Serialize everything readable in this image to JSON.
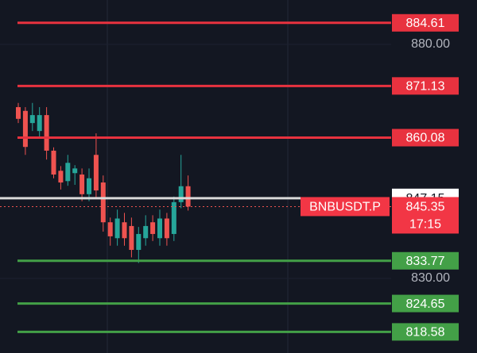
{
  "chart_data": {
    "type": "candlestick",
    "categories": [
      null,
      null,
      null,
      null,
      null,
      null,
      null,
      null,
      null,
      null,
      null,
      null,
      null,
      null,
      null,
      null,
      null,
      null,
      null,
      null,
      null,
      null,
      null,
      null,
      null
    ],
    "open": [
      866.6,
      865.8,
      863.2,
      861.5,
      864.9,
      857.3,
      853.0,
      850.8,
      852.5,
      852.2,
      848.0,
      856.4,
      850.5,
      842.0,
      838.6,
      842.0,
      841.2,
      836.1,
      838.6,
      842.0,
      838.6,
      842.8,
      839.5,
      846.3,
      849.7
    ],
    "high": [
      867.5,
      866.6,
      867.5,
      866.6,
      866.6,
      858.0,
      854.0,
      856.4,
      854.2,
      853.5,
      853.5,
      861.0,
      852.0,
      843.0,
      844.7,
      844.0,
      843.0,
      841.0,
      843.5,
      843.5,
      844.7,
      844.0,
      847.5,
      856.4,
      852.0
    ],
    "low": [
      863.2,
      856.4,
      861.5,
      860.0,
      855.4,
      851.4,
      849.0,
      849.8,
      850.0,
      846.5,
      846.5,
      847.0,
      840.0,
      837.0,
      837.0,
      837.0,
      834.5,
      833.3,
      837.0,
      838.0,
      837.0,
      837.0,
      838.0,
      845.0,
      844.5
    ],
    "close": [
      864.1,
      858.1,
      864.9,
      864.9,
      857.3,
      852.2,
      850.5,
      854.7,
      853.5,
      848.0,
      851.4,
      848.8,
      842.0,
      839.0,
      842.8,
      838.6,
      836.1,
      839.5,
      841.2,
      839.5,
      842.8,
      838.6,
      846.3,
      849.7,
      845.35
    ],
    "up_color": "#26a69a",
    "down_color": "#ef5350",
    "ylim": [
      814.07,
      889.49
    ],
    "yticks": [
      {
        "value": 880,
        "label": "880.00"
      },
      {
        "value": 830,
        "label": "830.00"
      }
    ],
    "grid": true,
    "levels": [
      {
        "value": 884.61,
        "color": "#e8323f"
      },
      {
        "value": 871.13,
        "color": "#e8323f"
      },
      {
        "value": 860.08,
        "color": "#e8323f"
      },
      {
        "value": 833.77,
        "color": "#43a047"
      },
      {
        "value": 824.65,
        "color": "#43a047"
      },
      {
        "value": 818.58,
        "color": "#43a047"
      }
    ],
    "last_price": 847.15,
    "symbol": "BNBUSDT.P",
    "mark_price": 845.35,
    "countdown": "17:15"
  }
}
